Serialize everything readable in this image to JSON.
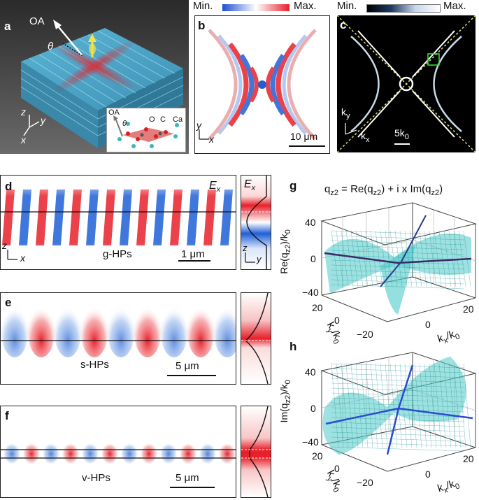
{
  "panels": {
    "a": {
      "label": "a",
      "oa_label": "OA",
      "theta_label": "θ",
      "axis_z": "z",
      "axis_y": "y",
      "axis_x": "x",
      "inset": {
        "oa": "OA",
        "theta": "θ",
        "atom_o": "O",
        "atom_c": "C",
        "atom_ca": "Ca"
      }
    },
    "b": {
      "label": "b",
      "colorbar_min": "Min.",
      "colorbar_max": "Max.",
      "axis_y": "y",
      "axis_x": "x",
      "scalebar": "10 μm"
    },
    "c": {
      "label": "c",
      "colorbar_min": "Min.",
      "colorbar_max": "Max.",
      "axis_ky": "k",
      "axis_ky_sub": "y",
      "axis_kx": "k",
      "axis_kx_sub": "x",
      "scalebar": "5k",
      "scalebar_sub": "0"
    },
    "d": {
      "label": "d",
      "field_label": "E",
      "field_sub": "x",
      "side_field_label": "E",
      "side_field_sub": "x",
      "mode_label": "g-HPs",
      "scalebar": "1 μm",
      "axis_z": "z",
      "axis_x": "x",
      "side_axis_z": "z",
      "side_axis_y": "y"
    },
    "e": {
      "label": "e",
      "mode_label": "s-HPs",
      "scalebar": "5 μm"
    },
    "f": {
      "label": "f",
      "mode_label": "v-HPs",
      "scalebar": "5 μm"
    },
    "g": {
      "label": "g",
      "title_q": "q",
      "title_q_sub": "z2",
      "title_eq": " = Re(q",
      "title_eq_sub": "z2",
      "title_mid": ") + i x Im(q",
      "title_mid_sub": "z2",
      "title_end": ")",
      "zlabel": "Re(q",
      "zlabel_sub": "z2",
      "zlabel_end": ")/k",
      "zlabel_end_sub": "0",
      "zticks": [
        "40",
        "0",
        "−40"
      ],
      "yticks": [
        "20",
        "0",
        "−20"
      ],
      "xticks": [
        "0",
        "20"
      ],
      "ylabel": "k",
      "ylabel_sub": "y",
      "ylabel_end": "/k",
      "ylabel_end_sub": "0",
      "xlabel": "k",
      "xlabel_sub": "x",
      "xlabel_end": "/k",
      "xlabel_end_sub": "0"
    },
    "h": {
      "label": "h",
      "zlabel": "Im(q",
      "zlabel_sub": "z2",
      "zlabel_end": ")/k",
      "zlabel_end_sub": "0",
      "zticks": [
        "40",
        "0",
        "−40"
      ],
      "yticks": [
        "20",
        "0",
        "−20"
      ],
      "xticks": [
        "0",
        "20"
      ],
      "ylabel": "k",
      "ylabel_sub": "y",
      "ylabel_end": "/k",
      "ylabel_end_sub": "0",
      "xlabel": "k",
      "xlabel_sub": "x",
      "xlabel_end": "/k",
      "xlabel_end_sub": "0"
    }
  },
  "colors": {
    "red": "#e8202a",
    "blue": "#1f5fd6",
    "cyan": "#4cc9c9",
    "crystal": "#4aa3c4",
    "guide": "#c8e05a",
    "dark_line": "#3a2a6a"
  }
}
